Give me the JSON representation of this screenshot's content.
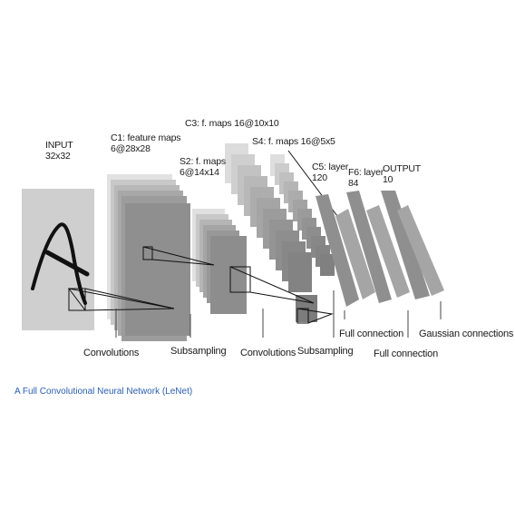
{
  "layers": {
    "input": [
      "INPUT",
      "32x32"
    ],
    "c1": [
      "C1: feature maps",
      "6@28x28"
    ],
    "c3": [
      "C3: f. maps 16@10x10"
    ],
    "s2": [
      "S2: f. maps",
      "6@14x14"
    ],
    "s4": [
      "S4: f. maps 16@5x5"
    ],
    "c5": [
      "C5: layer",
      "120"
    ],
    "f6": [
      "F6: layer",
      "84"
    ],
    "output": [
      "OUTPUT",
      "10"
    ]
  },
  "operations": {
    "conv1": "Convolutions",
    "sub1": "Subsampling",
    "conv2": "Convolutions",
    "sub2": "Subsampling",
    "full1": "Full connection",
    "full2": "Full connection",
    "gauss": "Gaussian connections"
  },
  "caption": "A Full Convolutional  Neural Network (LeNet)",
  "colors": {
    "input_plane": "#cfcfcf",
    "map_light": "#d9d9d9",
    "map_mid": "#a9a9a9",
    "map_dark": "#8a8a8a",
    "band": "#8f8f8f",
    "caption": "#2a5fb0"
  }
}
